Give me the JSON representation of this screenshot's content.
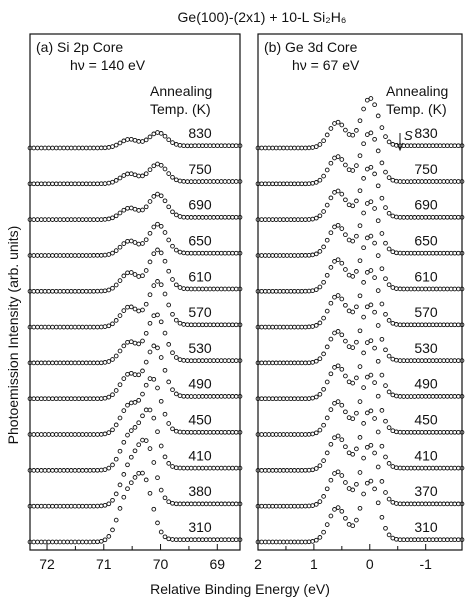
{
  "title": "Ge(100)-(2x1) + 10-L Si₂H₆",
  "ylabel": "Photoemission Intensity (arb. units)",
  "xlabel": "Relative Binding Energy (eV)",
  "chart_data": [
    {
      "type": "line",
      "panel_label": "(a) Si 2p Core",
      "photon_energy": "hν = 140 eV",
      "legend_title": [
        "Annealing",
        "Temp. (K)"
      ],
      "xlim": [
        72.3,
        68.6
      ],
      "xticks": [
        "72",
        "71",
        "70",
        "69"
      ],
      "xtick_values": [
        72,
        71,
        70,
        69
      ],
      "series": [
        {
          "name": "830",
          "peaks": [
            [
              70.55,
              0.3
            ],
            [
              70.05,
              0.5
            ]
          ]
        },
        {
          "name": "750",
          "peaks": [
            [
              70.55,
              0.35
            ],
            [
              70.05,
              0.65
            ]
          ]
        },
        {
          "name": "690",
          "peaks": [
            [
              70.55,
              0.4
            ],
            [
              70.05,
              0.85
            ]
          ]
        },
        {
          "name": "650",
          "peaks": [
            [
              70.55,
              0.5
            ],
            [
              70.05,
              1.05
            ]
          ]
        },
        {
          "name": "610",
          "peaks": [
            [
              70.55,
              0.65
            ],
            [
              70.05,
              1.4
            ]
          ]
        },
        {
          "name": "570",
          "peaks": [
            [
              70.55,
              0.7
            ],
            [
              70.05,
              1.55
            ]
          ]
        },
        {
          "name": "530",
          "peaks": [
            [
              70.55,
              0.72
            ],
            [
              70.08,
              1.65
            ]
          ]
        },
        {
          "name": "490",
          "peaks": [
            [
              70.55,
              0.85
            ],
            [
              70.1,
              1.8
            ]
          ]
        },
        {
          "name": "450",
          "peaks": [
            [
              70.55,
              1.0
            ],
            [
              70.15,
              1.9
            ]
          ]
        },
        {
          "name": "410",
          "peaks": [
            [
              70.55,
              1.15
            ],
            [
              70.2,
              2.0
            ]
          ]
        },
        {
          "name": "380",
          "peaks": [
            [
              70.55,
              1.25
            ],
            [
              70.25,
              2.05
            ]
          ]
        },
        {
          "name": "310",
          "peaks": [
            [
              70.6,
              1.45
            ],
            [
              70.3,
              2.1
            ]
          ]
        }
      ]
    },
    {
      "type": "line",
      "panel_label": "(b) Ge 3d Core",
      "photon_energy": "hν = 67 eV",
      "legend_title": [
        "Annealing",
        "Temp. (K)"
      ],
      "annotation": "S",
      "xlim": [
        2.0,
        -1.65
      ],
      "xticks": [
        "2",
        "1",
        "0",
        "-1"
      ],
      "xtick_values": [
        2,
        1,
        0,
        -1
      ],
      "series": [
        {
          "name": "830",
          "peaks": [
            [
              0.58,
              0.9
            ],
            [
              0.0,
              1.7
            ]
          ]
        },
        {
          "name": "750",
          "peaks": [
            [
              0.58,
              0.95
            ],
            [
              0.0,
              1.75
            ]
          ]
        },
        {
          "name": "690",
          "peaks": [
            [
              0.58,
              1.0
            ],
            [
              0.0,
              1.8
            ]
          ]
        },
        {
          "name": "650",
          "peaks": [
            [
              0.58,
              1.05
            ],
            [
              0.0,
              1.85
            ]
          ]
        },
        {
          "name": "610",
          "peaks": [
            [
              0.58,
              1.1
            ],
            [
              0.0,
              1.9
            ]
          ]
        },
        {
          "name": "570",
          "peaks": [
            [
              0.58,
              1.1
            ],
            [
              0.0,
              1.95
            ]
          ]
        },
        {
          "name": "530",
          "peaks": [
            [
              0.58,
              1.1
            ],
            [
              0.0,
              2.0
            ]
          ]
        },
        {
          "name": "490",
          "peaks": [
            [
              0.58,
              1.15
            ],
            [
              0.0,
              2.0
            ]
          ]
        },
        {
          "name": "450",
          "peaks": [
            [
              0.58,
              1.15
            ],
            [
              0.0,
              2.05
            ]
          ]
        },
        {
          "name": "410",
          "peaks": [
            [
              0.58,
              1.2
            ],
            [
              0.0,
              2.05
            ]
          ]
        },
        {
          "name": "370",
          "peaks": [
            [
              0.58,
              1.2
            ],
            [
              0.0,
              2.1
            ]
          ]
        },
        {
          "name": "310",
          "peaks": [
            [
              0.58,
              1.2
            ],
            [
              0.0,
              2.1
            ]
          ]
        }
      ]
    }
  ]
}
